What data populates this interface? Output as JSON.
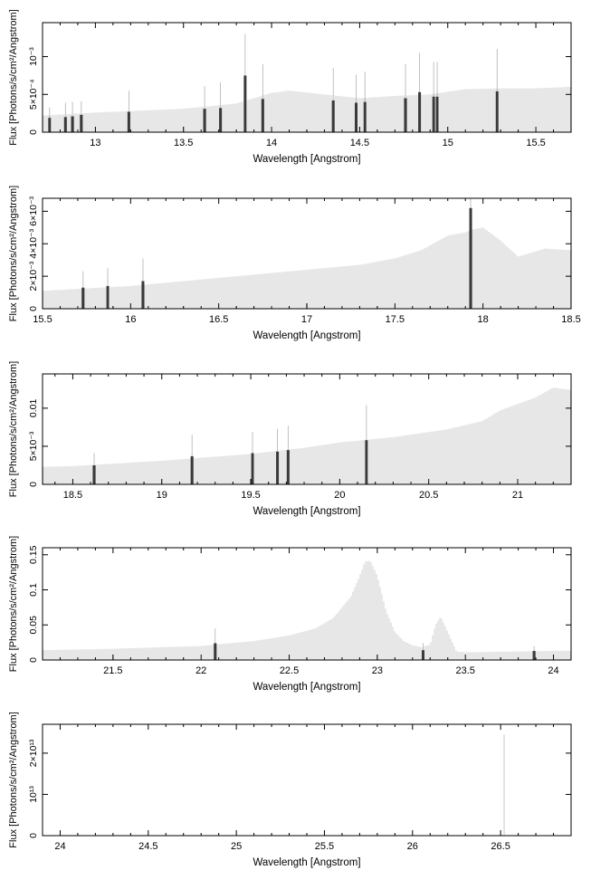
{
  "chart_data": [
    {
      "type": "bar",
      "xlabel": "Wavelength [Angstrom]",
      "ylabel": "Flux [Photons/s/cm²/Angstrom]",
      "xlim": [
        12.7,
        15.7
      ],
      "ylim": [
        0,
        0.00145
      ],
      "grid": false,
      "x_ticks": [
        {
          "value": 13,
          "label": "13"
        },
        {
          "value": 13.5,
          "label": "13.5"
        },
        {
          "value": 14,
          "label": "14"
        },
        {
          "value": 14.5,
          "label": "14.5"
        },
        {
          "value": 15,
          "label": "15"
        },
        {
          "value": 15.5,
          "label": "15.5"
        }
      ],
      "y_ticks": [
        {
          "value": 0,
          "label": "0"
        },
        {
          "value": 0.0005,
          "label": "5×10⁻⁴"
        },
        {
          "value": 0.001,
          "label": "10⁻³"
        }
      ],
      "continuum": {
        "x": [
          12.7,
          13.0,
          13.5,
          13.8,
          14.0,
          14.1,
          14.3,
          14.5,
          14.7,
          14.9,
          15.1,
          15.3,
          15.5,
          15.7
        ],
        "y": [
          0.00022,
          0.00026,
          0.00031,
          0.00038,
          0.00052,
          0.00055,
          0.0005,
          0.00045,
          0.00048,
          0.0005,
          0.00057,
          0.00058,
          0.00058,
          0.0006
        ]
      },
      "lines": [
        {
          "x": 12.74,
          "flux": 0.00019,
          "err": 0.00033
        },
        {
          "x": 12.83,
          "flux": 0.0002,
          "err": 0.00039
        },
        {
          "x": 12.87,
          "flux": 0.00021,
          "err": 0.0004
        },
        {
          "x": 12.92,
          "flux": 0.00023,
          "err": 0.00041
        },
        {
          "x": 13.19,
          "flux": 0.00027,
          "err": 0.00055
        },
        {
          "x": 13.62,
          "flux": 0.00031,
          "err": 0.00061
        },
        {
          "x": 13.71,
          "flux": 0.00032,
          "err": 0.00066
        },
        {
          "x": 13.85,
          "flux": 0.00075,
          "err": 0.0013
        },
        {
          "x": 13.95,
          "flux": 0.00044,
          "err": 0.0009
        },
        {
          "x": 14.35,
          "flux": 0.00042,
          "err": 0.00085
        },
        {
          "x": 14.48,
          "flux": 0.00039,
          "err": 0.00076
        },
        {
          "x": 14.53,
          "flux": 0.0004,
          "err": 0.0008
        },
        {
          "x": 14.76,
          "flux": 0.00045,
          "err": 0.0009
        },
        {
          "x": 14.84,
          "flux": 0.00053,
          "err": 0.00105
        },
        {
          "x": 14.92,
          "flux": 0.00047,
          "err": 0.00093
        },
        {
          "x": 14.94,
          "flux": 0.00047,
          "err": 0.00093
        },
        {
          "x": 15.28,
          "flux": 0.00054,
          "err": 0.0011
        }
      ]
    },
    {
      "type": "bar",
      "xlabel": "Wavelength [Angstrom]",
      "ylabel": "Flux [Photons/s/cm²/Angstrom]",
      "xlim": [
        15.5,
        18.5
      ],
      "ylim": [
        0,
        0.0068
      ],
      "grid": false,
      "x_ticks": [
        {
          "value": 15.5,
          "label": "15.5"
        },
        {
          "value": 16,
          "label": "16"
        },
        {
          "value": 16.5,
          "label": "16.5"
        },
        {
          "value": 17,
          "label": "17"
        },
        {
          "value": 17.5,
          "label": "17.5"
        },
        {
          "value": 18,
          "label": "18"
        },
        {
          "value": 18.5,
          "label": "18.5"
        }
      ],
      "y_ticks": [
        {
          "value": 0,
          "label": "0"
        },
        {
          "value": 0.002,
          "label": "2×10⁻³"
        },
        {
          "value": 0.004,
          "label": "4×10⁻³"
        },
        {
          "value": 0.006,
          "label": "6×10⁻³"
        }
      ],
      "continuum": {
        "x": [
          15.5,
          16.0,
          16.5,
          17.0,
          17.3,
          17.5,
          17.65,
          17.8,
          17.9,
          17.95,
          18.0,
          18.1,
          18.2,
          18.35,
          18.5
        ],
        "y": [
          0.0011,
          0.0014,
          0.0019,
          0.0024,
          0.0027,
          0.0031,
          0.0036,
          0.0045,
          0.0047,
          0.0049,
          0.005,
          0.0042,
          0.0032,
          0.0037,
          0.0036
        ]
      },
      "lines": [
        {
          "x": 15.73,
          "flux": 0.0013,
          "err": 0.0023
        },
        {
          "x": 15.87,
          "flux": 0.0014,
          "err": 0.0025
        },
        {
          "x": 16.07,
          "flux": 0.0017,
          "err": 0.0031
        },
        {
          "x": 17.93,
          "flux": 0.0062,
          "err": 0.0102
        }
      ]
    },
    {
      "type": "bar",
      "xlabel": "Wavelength [Angstrom]",
      "ylabel": "Flux [Photons/s/cm²/Angstrom]",
      "xlim": [
        18.33,
        21.3
      ],
      "ylim": [
        0,
        0.0145
      ],
      "grid": false,
      "x_ticks": [
        {
          "value": 18.5,
          "label": "18.5"
        },
        {
          "value": 19,
          "label": "19"
        },
        {
          "value": 19.5,
          "label": "19.5"
        },
        {
          "value": 20,
          "label": "20"
        },
        {
          "value": 20.5,
          "label": "20.5"
        },
        {
          "value": 21,
          "label": "21"
        }
      ],
      "y_ticks": [
        {
          "value": 0,
          "label": "0"
        },
        {
          "value": 0.005,
          "label": "5×10⁻³"
        },
        {
          "value": 0.01,
          "label": "0.01"
        }
      ],
      "continuum": {
        "x": [
          18.33,
          18.5,
          19.0,
          19.5,
          19.8,
          20.0,
          20.3,
          20.6,
          20.8,
          20.9,
          21.1,
          21.2,
          21.3
        ],
        "y": [
          0.0023,
          0.0024,
          0.0031,
          0.004,
          0.0048,
          0.0055,
          0.0062,
          0.0072,
          0.0083,
          0.0097,
          0.0114,
          0.0127,
          0.0124
        ]
      },
      "lines": [
        {
          "x": 18.62,
          "flux": 0.0025,
          "err": 0.0041
        },
        {
          "x": 19.17,
          "flux": 0.0037,
          "err": 0.0065
        },
        {
          "x": 19.51,
          "flux": 0.0041,
          "err": 0.0069
        },
        {
          "x": 19.65,
          "flux": 0.0043,
          "err": 0.0073
        },
        {
          "x": 19.71,
          "flux": 0.0045,
          "err": 0.0077
        },
        {
          "x": 20.15,
          "flux": 0.0058,
          "err": 0.0104
        }
      ]
    },
    {
      "type": "bar",
      "xlabel": "Wavelength [Angstrom]",
      "ylabel": "Flux [Photons/s/cm²/Angstrom]",
      "xlim": [
        21.1,
        24.1
      ],
      "ylim": [
        0,
        0.16
      ],
      "grid": false,
      "x_ticks": [
        {
          "value": 21.5,
          "label": "21.5"
        },
        {
          "value": 22,
          "label": "22"
        },
        {
          "value": 22.5,
          "label": "22.5"
        },
        {
          "value": 23,
          "label": "23"
        },
        {
          "value": 23.5,
          "label": "23.5"
        },
        {
          "value": 24,
          "label": "24"
        }
      ],
      "y_ticks": [
        {
          "value": 0,
          "label": "0"
        },
        {
          "value": 0.05,
          "label": "0.05"
        },
        {
          "value": 0.1,
          "label": "0.1"
        },
        {
          "value": 0.15,
          "label": "0.15"
        }
      ],
      "continuum": {
        "x": [
          21.1,
          21.5,
          22.0,
          22.3,
          22.5,
          22.65,
          22.75,
          22.85,
          22.9,
          22.93,
          22.96,
          23.0,
          23.05,
          23.1,
          23.15,
          23.2,
          23.25,
          23.3,
          23.33,
          23.36,
          23.4,
          23.45,
          23.5,
          24.0,
          24.1
        ],
        "y": [
          0.014,
          0.016,
          0.02,
          0.027,
          0.035,
          0.045,
          0.06,
          0.09,
          0.12,
          0.14,
          0.142,
          0.12,
          0.07,
          0.04,
          0.027,
          0.021,
          0.018,
          0.022,
          0.05,
          0.062,
          0.04,
          0.012,
          0.011,
          0.013,
          0.013
        ]
      },
      "lines": [
        {
          "x": 22.08,
          "flux": 0.024,
          "err": 0.045
        },
        {
          "x": 23.26,
          "flux": 0.014,
          "err": 0.024
        },
        {
          "x": 23.89,
          "flux": 0.013,
          "err": 0.02
        }
      ]
    },
    {
      "type": "bar",
      "xlabel": "Wavelength [Angstrom]",
      "ylabel": "Flux [Photons/s/cm²/Angstrom]",
      "xlim": [
        23.9,
        26.9
      ],
      "ylim": [
        0,
        27000000000000.0
      ],
      "grid": false,
      "x_ticks": [
        {
          "value": 24,
          "label": "24"
        },
        {
          "value": 24.5,
          "label": "24.5"
        },
        {
          "value": 25,
          "label": "25"
        },
        {
          "value": 25.5,
          "label": "25.5"
        },
        {
          "value": 26,
          "label": "26"
        },
        {
          "value": 26.5,
          "label": "26.5"
        }
      ],
      "y_ticks": [
        {
          "value": 0,
          "label": "0"
        },
        {
          "value": 10000000000000.0,
          "label": "10¹³"
        },
        {
          "value": 20000000000000.0,
          "label": "2×10¹³"
        }
      ],
      "continuum": {
        "x": [],
        "y": []
      },
      "spike": {
        "x": 26.52,
        "flux": 24500000000000.0
      },
      "lines": []
    }
  ]
}
